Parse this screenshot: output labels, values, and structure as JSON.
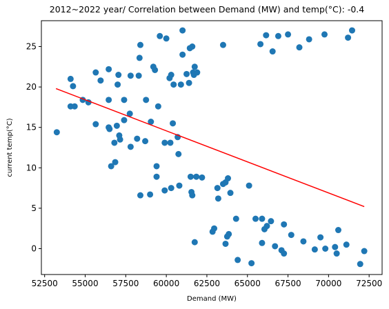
{
  "chart_data": {
    "type": "scatter",
    "title": "2012~2022 year/ Correlation between Demand (MW) and temp(°C): -0.4",
    "xlabel": "Demand (MW)",
    "ylabel": "current temp(°C)",
    "xlim": [
      52300,
      73300
    ],
    "ylim": [
      -3.2,
      28.2
    ],
    "xticks": [
      52500,
      55000,
      57500,
      60000,
      62500,
      65000,
      67500,
      70000,
      72500
    ],
    "yticks": [
      0,
      5,
      10,
      15,
      20,
      25
    ],
    "grid": false,
    "marker_color": "#1f77b4",
    "trend_color": "#ff0000",
    "trend_line": {
      "x": [
        53200,
        72200
      ],
      "y": [
        19.8,
        5.2
      ]
    },
    "points": [
      {
        "x": 53250,
        "y": 14.4
      },
      {
        "x": 54100,
        "y": 21.0
      },
      {
        "x": 54100,
        "y": 17.6
      },
      {
        "x": 54250,
        "y": 20.1
      },
      {
        "x": 54350,
        "y": 17.6
      },
      {
        "x": 54850,
        "y": 18.4
      },
      {
        "x": 55200,
        "y": 18.1
      },
      {
        "x": 55650,
        "y": 21.8
      },
      {
        "x": 55650,
        "y": 15.4
      },
      {
        "x": 55950,
        "y": 20.8
      },
      {
        "x": 56450,
        "y": 22.2
      },
      {
        "x": 56450,
        "y": 18.4
      },
      {
        "x": 56450,
        "y": 15.0
      },
      {
        "x": 56500,
        "y": 14.8
      },
      {
        "x": 56600,
        "y": 10.2
      },
      {
        "x": 56800,
        "y": 13.1
      },
      {
        "x": 56850,
        "y": 10.7
      },
      {
        "x": 56950,
        "y": 15.2
      },
      {
        "x": 57000,
        "y": 20.3
      },
      {
        "x": 57050,
        "y": 21.5
      },
      {
        "x": 57100,
        "y": 14.0
      },
      {
        "x": 57150,
        "y": 13.5
      },
      {
        "x": 57400,
        "y": 15.9
      },
      {
        "x": 57400,
        "y": 18.4
      },
      {
        "x": 57750,
        "y": 16.7
      },
      {
        "x": 57800,
        "y": 21.4
      },
      {
        "x": 57800,
        "y": 12.6
      },
      {
        "x": 58200,
        "y": 13.6
      },
      {
        "x": 58300,
        "y": 21.4
      },
      {
        "x": 58350,
        "y": 23.6
      },
      {
        "x": 58400,
        "y": 25.2
      },
      {
        "x": 58400,
        "y": 6.6
      },
      {
        "x": 58700,
        "y": 13.3
      },
      {
        "x": 58750,
        "y": 18.4
      },
      {
        "x": 59000,
        "y": 6.7
      },
      {
        "x": 59050,
        "y": 15.7
      },
      {
        "x": 59200,
        "y": 22.5
      },
      {
        "x": 59300,
        "y": 22.1
      },
      {
        "x": 59400,
        "y": 10.2
      },
      {
        "x": 59400,
        "y": 8.9
      },
      {
        "x": 59500,
        "y": 17.6
      },
      {
        "x": 59600,
        "y": 26.3
      },
      {
        "x": 59900,
        "y": 13.1
      },
      {
        "x": 59900,
        "y": 7.2
      },
      {
        "x": 60000,
        "y": 26.0
      },
      {
        "x": 60200,
        "y": 21.1
      },
      {
        "x": 60250,
        "y": 13.1
      },
      {
        "x": 60300,
        "y": 21.5
      },
      {
        "x": 60300,
        "y": 7.5
      },
      {
        "x": 60400,
        "y": 15.5
      },
      {
        "x": 60450,
        "y": 20.3
      },
      {
        "x": 60700,
        "y": 13.8
      },
      {
        "x": 60750,
        "y": 11.7
      },
      {
        "x": 60800,
        "y": 7.8
      },
      {
        "x": 60900,
        "y": 20.3
      },
      {
        "x": 61000,
        "y": 27.0
      },
      {
        "x": 61000,
        "y": 24.0
      },
      {
        "x": 61250,
        "y": 21.6
      },
      {
        "x": 61400,
        "y": 20.5
      },
      {
        "x": 61450,
        "y": 24.8
      },
      {
        "x": 61500,
        "y": 8.9
      },
      {
        "x": 61550,
        "y": 7.0
      },
      {
        "x": 61600,
        "y": 6.6
      },
      {
        "x": 61600,
        "y": 25.0
      },
      {
        "x": 61650,
        "y": 21.8
      },
      {
        "x": 61700,
        "y": 21.5
      },
      {
        "x": 61750,
        "y": 22.5
      },
      {
        "x": 61750,
        "y": 0.8
      },
      {
        "x": 61850,
        "y": 8.9
      },
      {
        "x": 61900,
        "y": 21.8
      },
      {
        "x": 62200,
        "y": 8.8
      },
      {
        "x": 62850,
        "y": 2.1
      },
      {
        "x": 62950,
        "y": 2.5
      },
      {
        "x": 63150,
        "y": 7.5
      },
      {
        "x": 63200,
        "y": 6.2
      },
      {
        "x": 63500,
        "y": 25.2
      },
      {
        "x": 63500,
        "y": 8.0
      },
      {
        "x": 63650,
        "y": 8.2
      },
      {
        "x": 63650,
        "y": 0.6
      },
      {
        "x": 63750,
        "y": 1.5
      },
      {
        "x": 63800,
        "y": 8.7
      },
      {
        "x": 63850,
        "y": 1.8
      },
      {
        "x": 63950,
        "y": 6.9
      },
      {
        "x": 64300,
        "y": 3.7
      },
      {
        "x": 64400,
        "y": -1.4
      },
      {
        "x": 65100,
        "y": 7.8
      },
      {
        "x": 65250,
        "y": -1.8
      },
      {
        "x": 65500,
        "y": 3.7
      },
      {
        "x": 65800,
        "y": 25.3
      },
      {
        "x": 65900,
        "y": 3.7
      },
      {
        "x": 65900,
        "y": 0.7
      },
      {
        "x": 66050,
        "y": 2.4
      },
      {
        "x": 66150,
        "y": 26.4
      },
      {
        "x": 66200,
        "y": 2.8
      },
      {
        "x": 66450,
        "y": 3.4
      },
      {
        "x": 66550,
        "y": 24.4
      },
      {
        "x": 66700,
        "y": 0.3
      },
      {
        "x": 66900,
        "y": 26.3
      },
      {
        "x": 67100,
        "y": -0.2
      },
      {
        "x": 67250,
        "y": -0.6
      },
      {
        "x": 67250,
        "y": 3.0
      },
      {
        "x": 67500,
        "y": 26.5
      },
      {
        "x": 67700,
        "y": 1.7
      },
      {
        "x": 68200,
        "y": 24.9
      },
      {
        "x": 68450,
        "y": 0.9
      },
      {
        "x": 68800,
        "y": 25.9
      },
      {
        "x": 69150,
        "y": -0.1
      },
      {
        "x": 69500,
        "y": 1.4
      },
      {
        "x": 69750,
        "y": 26.5
      },
      {
        "x": 69800,
        "y": 0.0
      },
      {
        "x": 70400,
        "y": 0.2
      },
      {
        "x": 70500,
        "y": -0.6
      },
      {
        "x": 70600,
        "y": 2.3
      },
      {
        "x": 71100,
        "y": 0.5
      },
      {
        "x": 71200,
        "y": 26.1
      },
      {
        "x": 71450,
        "y": 27.0
      },
      {
        "x": 71950,
        "y": -1.9
      },
      {
        "x": 72200,
        "y": -0.3
      }
    ]
  }
}
